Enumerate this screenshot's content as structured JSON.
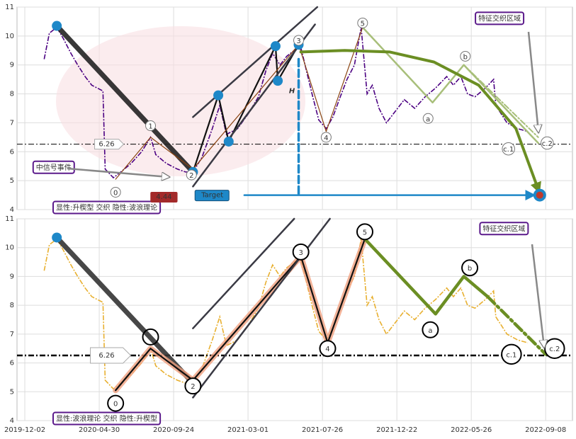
{
  "chart_data": [
    {
      "type": "line",
      "xlim": [
        -10.5,
        736
      ],
      "ylim": [
        4,
        11
      ],
      "yticks": [
        4,
        5,
        6,
        7,
        8,
        9,
        10,
        11
      ],
      "xticks": [
        0,
        100,
        200,
        300,
        400,
        500,
        600,
        700
      ],
      "grid": true,
      "series": [
        {
          "color": "#4b0082",
          "x": [
            26,
            33,
            43,
            52,
            62,
            71,
            81,
            90,
            105,
            108,
            119,
            129,
            143,
            157,
            169,
            176,
            190,
            205,
            216,
            226,
            238,
            252,
            262,
            271,
            286,
            300,
            314,
            324,
            333,
            343,
            352,
            362,
            371,
            386,
            395,
            405,
            414,
            424,
            433,
            443,
            452,
            460,
            467,
            476,
            486,
            495,
            510,
            524,
            538,
            552,
            567,
            576,
            586,
            595,
            605,
            619,
            630,
            633,
            648,
            662,
            676
          ],
          "values": [
            9.2,
            10.1,
            10.3,
            9.9,
            9.4,
            9.0,
            8.6,
            8.3,
            8.1,
            5.4,
            5.1,
            5.3,
            5.6,
            6.0,
            6.5,
            5.9,
            5.6,
            5.4,
            5.3,
            5.3,
            5.8,
            6.8,
            7.6,
            6.6,
            6.8,
            7.3,
            7.9,
            8.8,
            9.4,
            9.0,
            9.3,
            9.5,
            9.6,
            8.0,
            7.1,
            6.8,
            7.2,
            7.9,
            8.5,
            9.0,
            10.3,
            8.0,
            8.3,
            7.5,
            7.0,
            7.3,
            7.8,
            7.5,
            7.9,
            8.2,
            8.6,
            8.3,
            8.6,
            8.0,
            7.9,
            8.2,
            8.5,
            7.6,
            7.0,
            6.8,
            6.7
          ]
        }
      ],
      "lines": [
        {
          "style": "bold",
          "color": "#222222",
          "x": [
            43,
            226
          ],
          "values": [
            10.35,
            5.3
          ]
        },
        {
          "style": "mid",
          "color": "#111111",
          "x": [
            226,
            260,
            274,
            337,
            340,
            368
          ],
          "values": [
            5.3,
            7.95,
            6.35,
            9.65,
            8.45,
            9.7
          ]
        },
        {
          "style": "thin",
          "color": "#8b4513",
          "x": [
            122,
            169,
            226,
            368,
            405,
            454
          ],
          "values": [
            5.05,
            6.5,
            5.4,
            9.7,
            6.7,
            10.3
          ]
        },
        {
          "style": "soft",
          "color": "#a8bf7a",
          "x": [
            454,
            548,
            590,
            690
          ],
          "values": [
            10.3,
            7.7,
            9.0,
            6.3
          ]
        },
        {
          "style": "softdash",
          "color": "#a8bf7a",
          "x": [
            590,
            690
          ],
          "values": [
            9.0,
            6.5
          ]
        },
        {
          "style": "channel",
          "color": "#3a3a44",
          "x": [
            226,
            393
          ],
          "values": [
            7.2,
            11
          ]
        },
        {
          "style": "channel",
          "color": "#3a3a44",
          "x": [
            226,
            390
          ],
          "values": [
            4.8,
            10.4
          ]
        },
        {
          "style": "arrow",
          "color": "#6b8e23",
          "x": [
            371,
            430,
            490,
            550,
            610,
            660,
            690
          ],
          "values": [
            9.45,
            9.5,
            9.45,
            9.1,
            8.3,
            6.8,
            4.7
          ]
        },
        {
          "style": "dash",
          "color": "#1e88c8",
          "x": [
            368,
            368
          ],
          "values": [
            9.2,
            4.5
          ]
        },
        {
          "style": "arrowthin",
          "color": "#1e88c8",
          "x": [
            295,
            684
          ],
          "values": [
            4.5,
            4.5
          ]
        }
      ],
      "points": {
        "color": "#1e88c8",
        "x": [
          43,
          226,
          260,
          274,
          337,
          340,
          368
        ],
        "values": [
          10.35,
          5.3,
          7.95,
          6.35,
          9.65,
          8.45,
          9.7
        ]
      },
      "target_point": {
        "x": 692,
        "value": 4.5
      },
      "labels": [
        {
          "text": "0",
          "x": 122,
          "y": 4.6
        },
        {
          "text": "1",
          "x": 169,
          "y": 6.9
        },
        {
          "text": "2",
          "x": 224,
          "y": 5.2
        },
        {
          "text": "3",
          "x": 368,
          "y": 9.85
        },
        {
          "text": "4",
          "x": 405,
          "y": 6.5
        },
        {
          "text": "5",
          "x": 454,
          "y": 10.45
        },
        {
          "text": "a",
          "x": 542,
          "y": 7.15
        },
        {
          "text": "b",
          "x": 592,
          "y": 9.3
        },
        {
          "text": "c.1",
          "x": 650,
          "y": 6.1
        },
        {
          "text": "c.2",
          "x": 702,
          "y": 6.3
        }
      ],
      "level": 6.26,
      "level_x": 110,
      "boxes": [
        {
          "text": "中信号事件",
          "x": 15,
          "y": 5.45,
          "color": "#8b1a1a"
        },
        {
          "text": "特征交织区域",
          "x": 638,
          "y": 10.6,
          "color": "#1e88c8"
        },
        {
          "text": "显性:升楔型 交织 隐性:波浪理论",
          "x": 110,
          "y": 4.06,
          "color": "#1e88c8"
        }
      ],
      "h_label": {
        "text": "H",
        "x": 359,
        "y": 8.1
      },
      "target_label": {
        "text": "Target",
        "x": 252,
        "y": 4.5
      },
      "target_value": 4.44,
      "target_value_x": 187
    },
    {
      "type": "line",
      "xlim": [
        -10.5,
        736
      ],
      "ylim": [
        4,
        11
      ],
      "yticks": [
        4,
        5,
        6,
        7,
        8,
        9,
        10,
        11
      ],
      "xticks": [
        {
          "value": 0,
          "label": "2019-12-02"
        },
        {
          "value": 100,
          "label": "2020-04-30"
        },
        {
          "value": 200,
          "label": "2020-09-24"
        },
        {
          "value": 300,
          "label": "2021-03-01"
        },
        {
          "value": 400,
          "label": "2021-07-26"
        },
        {
          "value": 500,
          "label": "2021-12-22"
        },
        {
          "value": 600,
          "label": "2022-05-26"
        },
        {
          "value": 700,
          "label": "2022-09-08"
        }
      ],
      "grid": true,
      "series": [
        {
          "color": "#e8b030",
          "x": [
            26,
            33,
            43,
            52,
            62,
            71,
            81,
            90,
            105,
            108,
            119,
            129,
            143,
            157,
            169,
            176,
            190,
            205,
            216,
            226,
            238,
            252,
            262,
            271,
            286,
            300,
            314,
            324,
            333,
            343,
            352,
            362,
            371,
            386,
            395,
            405,
            414,
            424,
            433,
            443,
            452,
            460,
            467,
            476,
            486,
            495,
            510,
            524,
            538,
            552,
            567,
            576,
            586,
            595,
            605,
            619,
            630,
            633,
            648,
            662,
            676
          ],
          "values": [
            9.2,
            10.1,
            10.3,
            9.9,
            9.4,
            9.0,
            8.6,
            8.3,
            8.1,
            5.4,
            5.1,
            5.3,
            5.6,
            6.0,
            6.5,
            5.9,
            5.6,
            5.4,
            5.3,
            5.3,
            5.8,
            6.8,
            7.6,
            6.6,
            6.8,
            7.3,
            7.9,
            8.8,
            9.4,
            9.0,
            9.3,
            9.5,
            9.6,
            8.0,
            7.1,
            6.8,
            7.2,
            7.9,
            8.5,
            9.0,
            10.3,
            8.0,
            8.3,
            7.5,
            7.0,
            7.3,
            7.8,
            7.5,
            7.9,
            8.2,
            8.6,
            8.3,
            8.6,
            8.0,
            7.9,
            8.2,
            8.5,
            7.6,
            7.0,
            6.8,
            6.7
          ]
        }
      ],
      "lines": [
        {
          "style": "bold",
          "color": "#333333",
          "x": [
            43,
            226
          ],
          "values": [
            10.35,
            5.3
          ]
        },
        {
          "style": "glow",
          "color": "#f0a080",
          "x": [
            122,
            169,
            226,
            371,
            407,
            457
          ],
          "values": [
            5.05,
            6.5,
            5.4,
            9.7,
            6.7,
            10.3
          ]
        },
        {
          "style": "mid",
          "color": "#111111",
          "x": [
            122,
            169,
            226,
            371,
            407,
            457
          ],
          "values": [
            5.05,
            6.5,
            5.4,
            9.7,
            6.7,
            10.3
          ]
        },
        {
          "style": "green",
          "color": "#6b8e23",
          "x": [
            457,
            552,
            590,
            622
          ],
          "values": [
            10.3,
            7.7,
            9.0,
            8.3
          ]
        },
        {
          "style": "greendash",
          "color": "#6b8e23",
          "x": [
            622,
            700
          ],
          "values": [
            8.3,
            6.3
          ]
        },
        {
          "style": "channel",
          "color": "#3a3a44",
          "x": [
            226,
            362
          ],
          "values": [
            7.2,
            11
          ]
        },
        {
          "style": "channel",
          "color": "#3a3a44",
          "x": [
            226,
            410
          ],
          "values": [
            4.8,
            11
          ]
        }
      ],
      "points": {
        "color": "#1e88c8",
        "x": [
          43,
          226
        ],
        "values": [
          10.35,
          5.3
        ]
      },
      "rings": [
        {
          "x": 169,
          "y": 6.9
        }
      ],
      "labels": [
        {
          "text": "0",
          "x": 122,
          "y": 4.6
        },
        {
          "text": "2",
          "x": 226,
          "y": 5.2
        },
        {
          "text": "3",
          "x": 371,
          "y": 9.85
        },
        {
          "text": "4",
          "x": 407,
          "y": 6.5
        },
        {
          "text": "5",
          "x": 457,
          "y": 10.55
        },
        {
          "text": "a",
          "x": 545,
          "y": 7.15
        },
        {
          "text": "b",
          "x": 598,
          "y": 9.3
        },
        {
          "text": "c.1",
          "x": 654,
          "y": 6.3
        },
        {
          "text": "c.2",
          "x": 712,
          "y": 6.5
        }
      ],
      "level": 6.26,
      "level_x": 110,
      "boxes": [
        {
          "text": "特征交织区域",
          "x": 644,
          "y": 10.65,
          "color": "#1e88c8"
        },
        {
          "text": "显性:波浪理论 交织 隐性:升楔型",
          "x": 110,
          "y": 4.06,
          "color": "#1e88c8"
        }
      ]
    }
  ]
}
